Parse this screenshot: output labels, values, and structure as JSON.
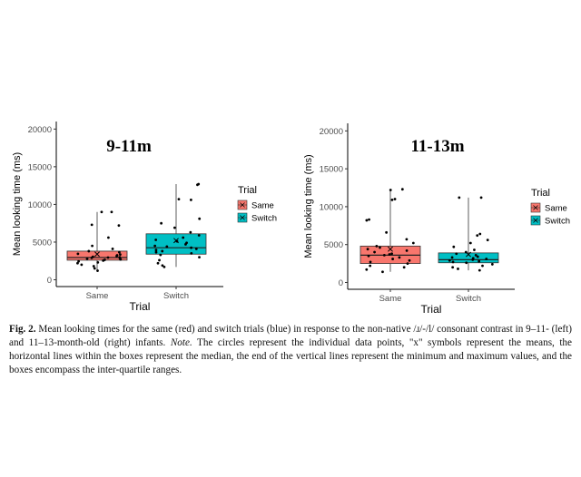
{
  "chart_data": [
    {
      "type": "box",
      "title": "9-11m",
      "xlabel": "Trial",
      "ylabel": "Mean looking time (ms)",
      "ylim": [
        -900,
        21000
      ],
      "yticks": [
        0,
        5000,
        10000,
        15000,
        20000
      ],
      "categories": [
        "Same",
        "Switch"
      ],
      "legend": {
        "title": "Trial",
        "entries": [
          "Same",
          "Switch"
        ],
        "position": "right"
      },
      "grid": false,
      "series": [
        {
          "name": "Same",
          "color": "#F8766D",
          "min": 1200,
          "q1": 2600,
          "median": 2950,
          "q3": 3800,
          "max": 9000,
          "mean": 3400,
          "points": [
            1200,
            1500,
            1800,
            2000,
            2200,
            2300,
            2450,
            2550,
            2650,
            2700,
            2800,
            2850,
            2900,
            2950,
            3000,
            3050,
            3150,
            3250,
            3350,
            3450,
            3650,
            3800,
            4100,
            4500,
            5600,
            7200,
            7300,
            9000,
            9000
          ]
        },
        {
          "name": "Switch",
          "color": "#00BFC4",
          "min": 1700,
          "q1": 3400,
          "median": 4250,
          "q3": 6100,
          "max": 12700,
          "mean": 5200,
          "points": [
            1700,
            1900,
            2200,
            2600,
            3000,
            3300,
            3500,
            3650,
            3800,
            3950,
            4100,
            4250,
            4400,
            4500,
            4700,
            4900,
            5100,
            5300,
            5600,
            5900,
            6300,
            6900,
            7500,
            8100,
            10600,
            10700,
            12600,
            12700
          ]
        }
      ]
    },
    {
      "type": "box",
      "title": "11-13m",
      "xlabel": "Trial",
      "ylabel": "Mean looking time (ms)",
      "ylim": [
        -900,
        21000
      ],
      "yticks": [
        0,
        5000,
        10000,
        15000,
        20000
      ],
      "categories": [
        "Same",
        "Switch"
      ],
      "legend": {
        "title": "Trial",
        "entries": [
          "Same",
          "Switch"
        ],
        "position": "right"
      },
      "grid": false,
      "series": [
        {
          "name": "Same",
          "color": "#F8766D",
          "min": 1400,
          "q1": 2500,
          "median": 3600,
          "q3": 4800,
          "max": 12300,
          "mean": 4400,
          "points": [
            1400,
            1700,
            2000,
            2200,
            2500,
            2700,
            2900,
            3100,
            3300,
            3500,
            3600,
            3700,
            3800,
            4000,
            4200,
            4400,
            4600,
            4800,
            5200,
            5700,
            6600,
            8200,
            8300,
            10900,
            11000,
            12200,
            12300
          ]
        },
        {
          "name": "Switch",
          "color": "#00BFC4",
          "min": 1600,
          "q1": 2600,
          "median": 3000,
          "q3": 3900,
          "max": 11200,
          "mean": 3700,
          "points": [
            1600,
            1800,
            2000,
            2200,
            2400,
            2600,
            2700,
            2800,
            2900,
            3000,
            3100,
            3200,
            3300,
            3400,
            3600,
            3800,
            4000,
            4300,
            4700,
            5200,
            5600,
            6200,
            6400,
            11200,
            11200
          ]
        }
      ]
    }
  ],
  "caption": {
    "lead": "Fig. 2.",
    "part1": "Mean looking times for the same (red) and switch trials (blue) in response to the non-native /ɹ/-/l/ consonant contrast in 9–11- (left) and 11–13-month-old (right) infants.",
    "note_label": "Note.",
    "part2": "The circles represent the individual data points, \"x\" symbols represent the means, the horizontal lines within the boxes represent the median, the end of the vertical lines represent the minimum and maximum values, and the boxes encompass the inter-quartile ranges."
  }
}
